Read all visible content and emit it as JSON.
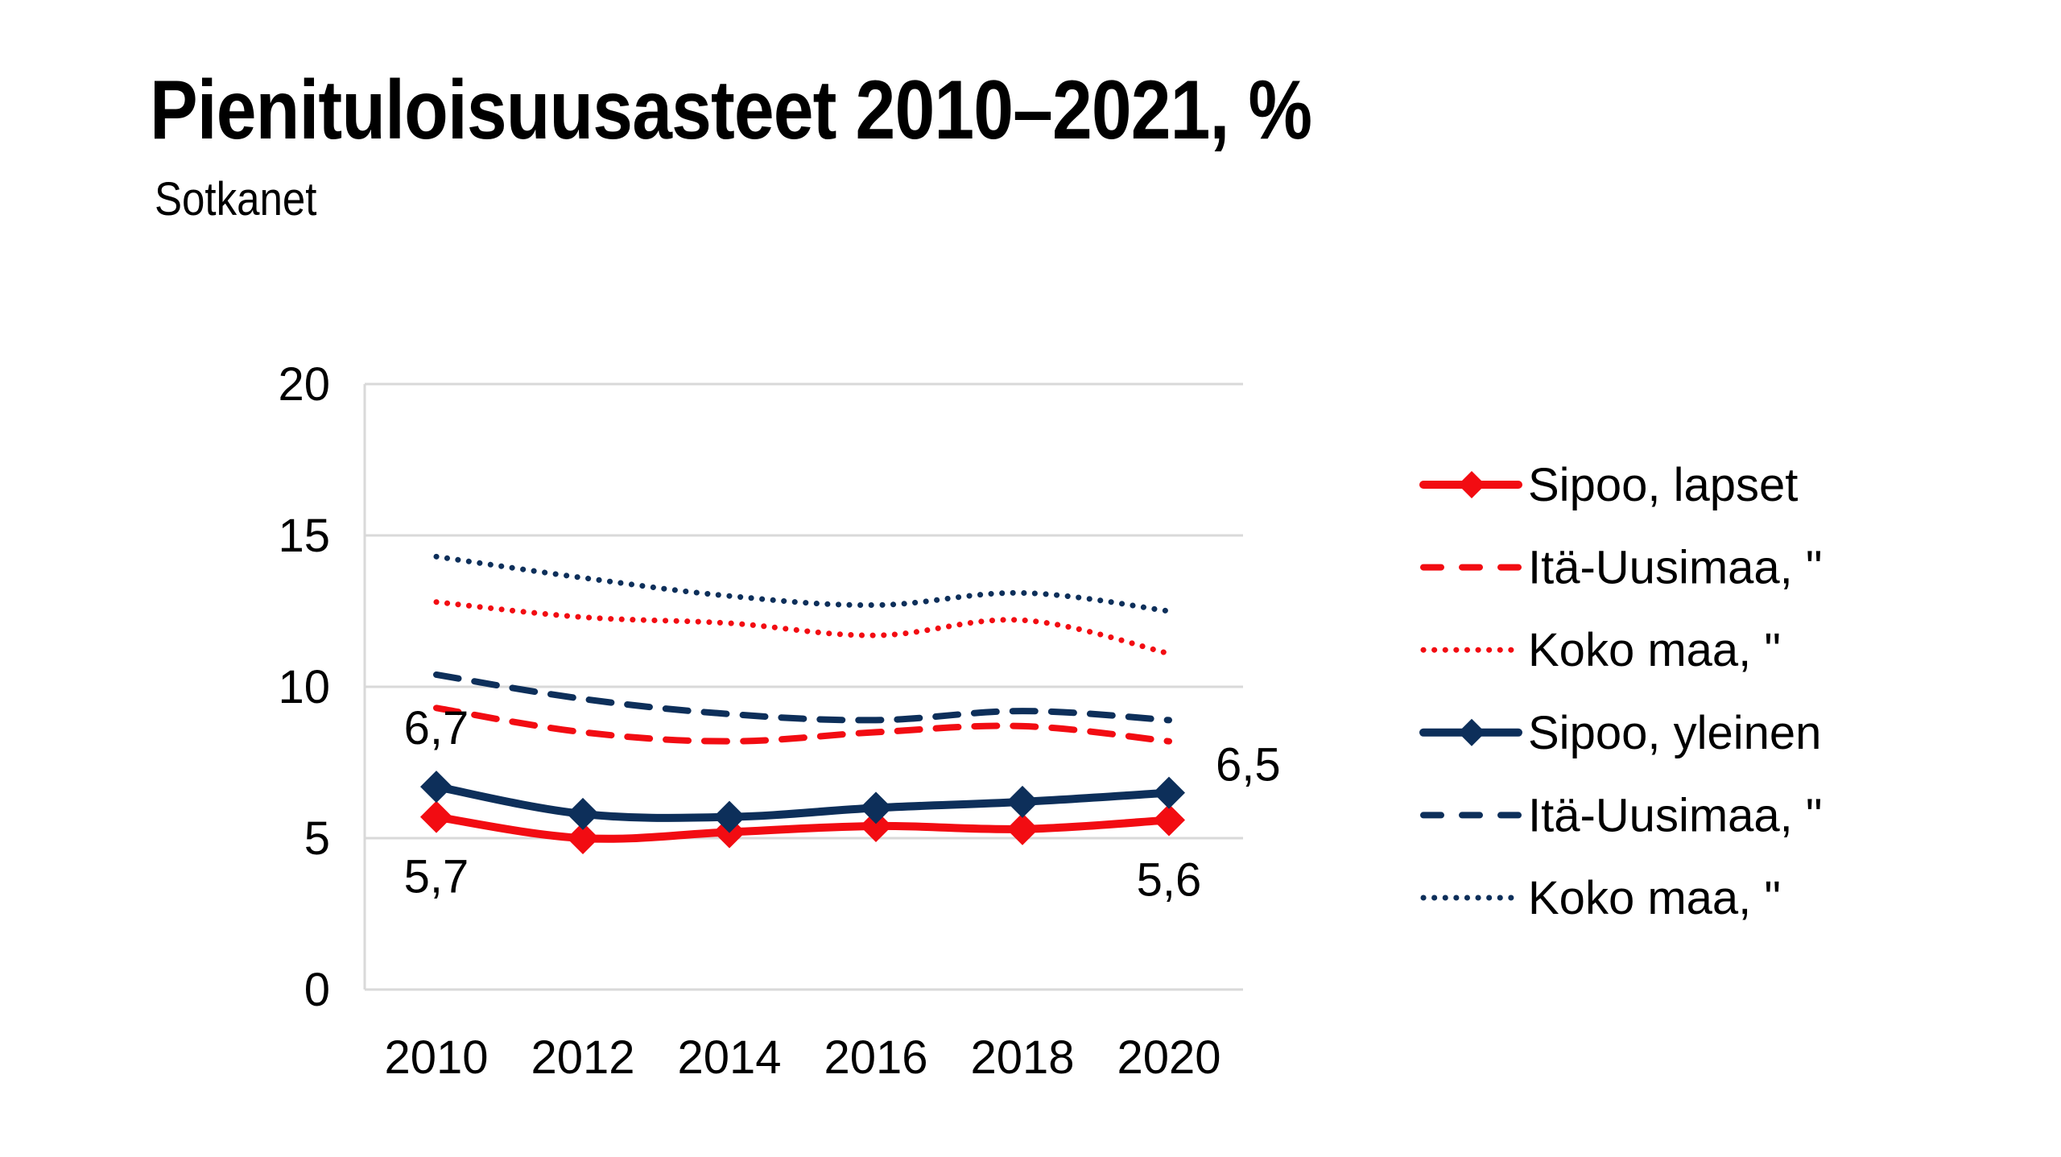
{
  "header": {
    "title": "Pienituloisuusasteet 2010–2021, %",
    "subtitle": "Sotkanet"
  },
  "chart_data": {
    "type": "line",
    "title": "Pienituloisuusasteet 2010–2021, %",
    "subtitle": "Sotkanet",
    "xlabel": "",
    "ylabel": "",
    "x": [
      "2010",
      "2012",
      "2014",
      "2016",
      "2018",
      "2020"
    ],
    "ylim": [
      0,
      20
    ],
    "yticks": [
      "0",
      "5",
      "10",
      "15",
      "20"
    ],
    "grid": "horizontal",
    "legend_position": "right",
    "colors": {
      "red": "#f20c12",
      "navy": "#0d2f5a",
      "grid": "#d9d9d9"
    },
    "series": [
      {
        "name": "Sipoo, lapset",
        "color": "#f20c12",
        "style": "solid-marker",
        "values": [
          5.7,
          5.0,
          5.2,
          5.4,
          5.3,
          5.6
        ]
      },
      {
        "name": "Itä-Uusimaa, \"",
        "color": "#f20c12",
        "style": "dashed",
        "values": [
          9.3,
          8.5,
          8.2,
          8.5,
          8.7,
          8.2
        ]
      },
      {
        "name": "Koko maa, \"",
        "color": "#f20c12",
        "style": "dotted",
        "values": [
          12.8,
          12.3,
          12.1,
          11.7,
          12.2,
          11.1
        ]
      },
      {
        "name": "Sipoo, yleinen",
        "color": "#0d2f5a",
        "style": "solid-marker",
        "values": [
          6.7,
          5.8,
          5.7,
          6.0,
          6.2,
          6.5
        ]
      },
      {
        "name": "Itä-Uusimaa, \"",
        "color": "#0d2f5a",
        "style": "dashed",
        "values": [
          10.4,
          9.6,
          9.1,
          8.9,
          9.2,
          8.9
        ]
      },
      {
        "name": "Koko maa, \"",
        "color": "#0d2f5a",
        "style": "dotted",
        "values": [
          14.3,
          13.6,
          13.0,
          12.7,
          13.1,
          12.5
        ]
      }
    ],
    "annotations": [
      {
        "series": "Sipoo, yleinen",
        "x": "2010",
        "text": "6,7",
        "position": "above"
      },
      {
        "series": "Sipoo, lapset",
        "x": "2010",
        "text": "5,7",
        "position": "below"
      },
      {
        "series": "Sipoo, yleinen",
        "x": "2020",
        "text": "6,5",
        "position": "right"
      },
      {
        "series": "Sipoo, lapset",
        "x": "2020",
        "text": "5,6",
        "position": "below"
      }
    ]
  }
}
